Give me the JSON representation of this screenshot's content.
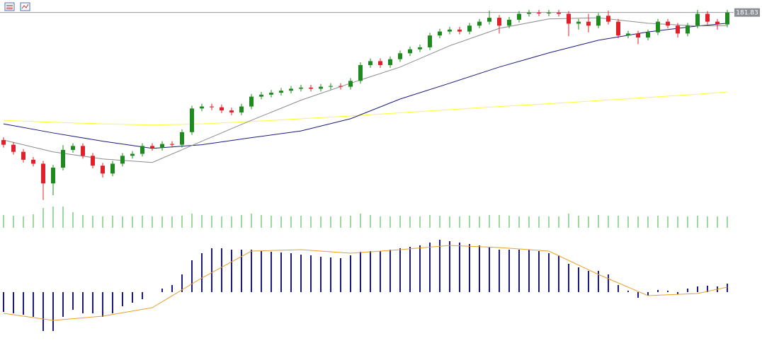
{
  "chart_data": {
    "type": "candlestick",
    "last_price": 181.83,
    "ylim": [
      133,
      185
    ],
    "up_color": "#1f8a1f",
    "down_color": "#e0202a",
    "open": [
      149.5,
      148.3,
      146.5,
      144.5,
      143.5,
      138.5,
      142.5,
      147.0,
      148.0,
      145.5,
      143.0,
      141.0,
      143.5,
      145.5,
      146.0,
      148.0,
      147.5,
      148.5,
      148.3,
      151.5,
      157.5,
      158.0,
      157.8,
      157.0,
      156.5,
      158.0,
      160.5,
      161.0,
      161.5,
      162.0,
      162.5,
      162.8,
      162.5,
      163.0,
      163.2,
      163.0,
      164.5,
      168.5,
      169.5,
      168.5,
      170.0,
      171.5,
      172.5,
      173.0,
      176.0,
      177.0,
      177.5,
      177.0,
      178.5,
      179.5,
      180.5,
      178.5,
      180.0,
      181.5,
      181.8,
      181.6,
      181.8,
      181.5,
      179.0,
      179.5,
      178.5,
      181.0,
      179.5,
      176.0,
      176.5,
      175.5,
      176.8,
      179.5,
      178.5,
      176.5,
      178.5,
      181.5,
      179.5,
      178.8
    ],
    "high": [
      150.2,
      149.0,
      147.2,
      145.2,
      144.2,
      143.2,
      148.2,
      148.7,
      148.7,
      146.2,
      143.7,
      144.2,
      146.2,
      146.7,
      148.7,
      148.7,
      149.2,
      149.2,
      152.2,
      158.2,
      158.7,
      158.7,
      158.5,
      157.7,
      158.7,
      161.2,
      161.7,
      162.2,
      162.7,
      163.2,
      163.5,
      163.5,
      163.7,
      163.9,
      163.9,
      165.2,
      169.2,
      170.2,
      170.2,
      170.7,
      172.2,
      173.2,
      173.7,
      176.7,
      177.7,
      178.2,
      178.2,
      179.2,
      180.2,
      182.3,
      181.2,
      180.7,
      182.2,
      182.5,
      182.5,
      182.5,
      182.5,
      182.2,
      180.2,
      181.5,
      181.7,
      182.3,
      180.2,
      177.2,
      177.2,
      177.5,
      180.2,
      180.2,
      179.2,
      179.2,
      182.5,
      182.2,
      180.2,
      182.5
    ],
    "low": [
      147.6,
      145.8,
      143.8,
      142.8,
      134.3,
      135.5,
      141.8,
      146.3,
      144.8,
      142.3,
      140.0,
      140.3,
      142.8,
      144.8,
      145.3,
      146.8,
      146.8,
      147.6,
      147.6,
      150.8,
      156.8,
      157.1,
      156.3,
      155.8,
      155.8,
      157.3,
      159.8,
      160.3,
      160.8,
      161.3,
      161.8,
      161.8,
      161.8,
      162.3,
      162.3,
      162.3,
      163.8,
      167.8,
      167.8,
      167.8,
      169.3,
      170.8,
      171.8,
      172.3,
      175.3,
      176.3,
      176.3,
      176.3,
      177.8,
      178.8,
      176.5,
      177.8,
      179.3,
      180.8,
      180.9,
      180.9,
      180.8,
      175.8,
      177.5,
      176.8,
      177.8,
      178.8,
      175.3,
      175.3,
      173.8,
      174.8,
      176.1,
      177.8,
      175.5,
      175.8,
      177.8,
      178.8,
      177.5,
      178.1
    ],
    "close": [
      148.3,
      146.5,
      144.5,
      143.5,
      138.5,
      142.5,
      147.0,
      148.0,
      145.5,
      143.0,
      141.0,
      143.5,
      145.5,
      146.0,
      148.0,
      147.5,
      148.5,
      148.3,
      151.5,
      157.5,
      158.0,
      157.8,
      157.0,
      156.5,
      158.0,
      160.5,
      161.0,
      161.5,
      162.0,
      162.5,
      162.8,
      162.5,
      163.0,
      163.2,
      163.0,
      164.5,
      168.5,
      169.5,
      168.5,
      170.0,
      171.5,
      172.5,
      173.0,
      176.0,
      177.0,
      177.5,
      177.0,
      178.5,
      179.5,
      180.5,
      178.5,
      180.0,
      181.5,
      181.8,
      181.6,
      181.8,
      181.5,
      179.0,
      179.5,
      178.5,
      181.0,
      179.5,
      176.0,
      176.5,
      175.5,
      176.8,
      179.5,
      178.5,
      176.5,
      178.5,
      181.5,
      179.5,
      178.8,
      181.83
    ],
    "moving_averages": [
      {
        "color": "#ffff33",
        "x": [
          0,
          5,
          10,
          15,
          20,
          25,
          30,
          35,
          40,
          45,
          50,
          55,
          60,
          65,
          70,
          73
        ],
        "values": [
          154.5,
          154.0,
          153.6,
          153.3,
          153.6,
          154.2,
          154.9,
          155.6,
          156.4,
          157.2,
          158.0,
          158.7,
          159.5,
          160.3,
          161.1,
          161.7
        ]
      },
      {
        "color": "#1a1a80",
        "x": [
          0,
          5,
          10,
          15,
          20,
          25,
          30,
          35,
          40,
          45,
          50,
          55,
          60,
          65,
          70,
          73
        ],
        "values": [
          153.6,
          151.3,
          149.2,
          147.4,
          148.3,
          150.1,
          151.8,
          154.9,
          159.9,
          163.9,
          168.0,
          171.6,
          174.8,
          176.9,
          178.4,
          179.1
        ]
      },
      {
        "color": "#8c8c8c",
        "x": [
          0,
          5,
          10,
          15,
          20,
          25,
          30,
          35,
          40,
          45,
          50,
          55,
          60,
          65,
          70,
          73
        ],
        "values": [
          149.5,
          146.5,
          144.7,
          143.8,
          149.2,
          154.5,
          159.6,
          163.9,
          168.0,
          173.4,
          177.8,
          180.2,
          180.5,
          179.1,
          178.4,
          178.5
        ]
      }
    ],
    "volume": {
      "color": "#3cb043",
      "ylim": [
        0,
        40
      ],
      "values": [
        18,
        17,
        16,
        19,
        28,
        30,
        30,
        22,
        18,
        17,
        16,
        17,
        16,
        16,
        17,
        16,
        16,
        16,
        17,
        20,
        18,
        17,
        16,
        16,
        18,
        20,
        18,
        17,
        16,
        16,
        17,
        16,
        16,
        16,
        16,
        17,
        20,
        18,
        16,
        16,
        17,
        16,
        16,
        18,
        17,
        16,
        16,
        17,
        16,
        18,
        18,
        17,
        16,
        16,
        16,
        16,
        16,
        20,
        17,
        16,
        18,
        17,
        17,
        16,
        16,
        16,
        17,
        16,
        16,
        16,
        17,
        16,
        16,
        16
      ]
    },
    "macd": {
      "color": "#1a1a80",
      "ylim": [
        -7,
        9
      ],
      "histogram": [
        -2.8,
        -3.0,
        -3.2,
        -3.5,
        -5.5,
        -5.5,
        -3.5,
        -2.5,
        -3.0,
        -3.0,
        -3.5,
        -3.0,
        -2.0,
        -1.5,
        -1.0,
        0.0,
        0.5,
        1.0,
        2.5,
        4.5,
        5.5,
        6.2,
        6.2,
        6.0,
        6.0,
        6.0,
        5.8,
        5.7,
        5.6,
        5.5,
        5.3,
        5.2,
        5.0,
        4.9,
        4.8,
        5.2,
        5.7,
        5.8,
        5.8,
        6.0,
        6.2,
        6.4,
        6.6,
        7.0,
        7.4,
        7.2,
        7.0,
        6.8,
        6.6,
        6.4,
        6.0,
        6.0,
        6.0,
        6.0,
        5.8,
        5.5,
        5.2,
        4.0,
        3.5,
        3.0,
        3.0,
        2.5,
        1.0,
        0.2,
        -0.8,
        -0.5,
        0.3,
        0.2,
        -0.3,
        0.5,
        0.8,
        0.9,
        0.8,
        1.2
      ],
      "signal": {
        "color": "#e8a030",
        "x": [
          0,
          5,
          10,
          15,
          20,
          25,
          30,
          35,
          40,
          45,
          50,
          55,
          60,
          65,
          70,
          73
        ],
        "values": [
          -3.0,
          -4.0,
          -3.4,
          -2.2,
          2.0,
          5.8,
          6.0,
          5.5,
          6.0,
          6.6,
          6.3,
          5.8,
          2.5,
          -0.5,
          -0.2,
          0.7
        ]
      }
    }
  }
}
